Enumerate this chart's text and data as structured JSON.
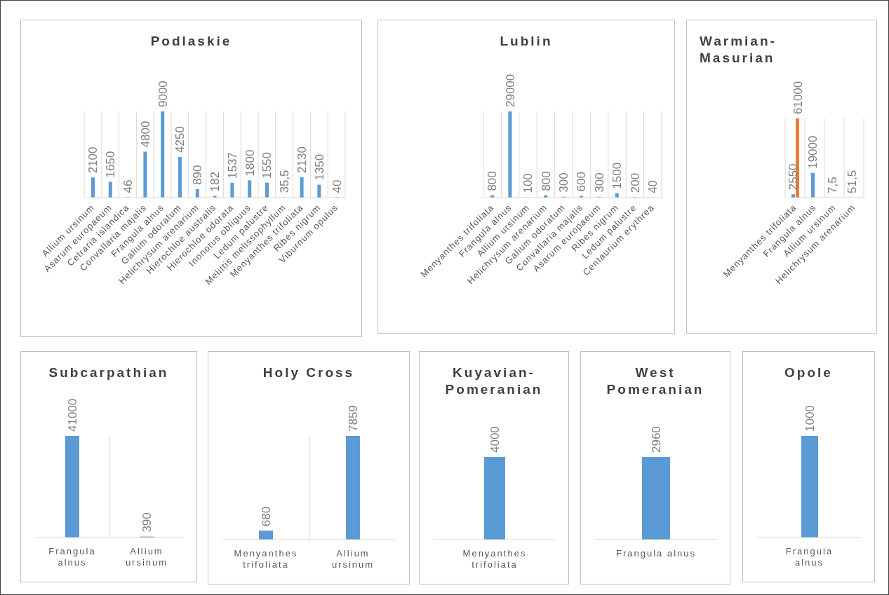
{
  "chart_data": [
    {
      "type": "bar",
      "title": "Podlaskie",
      "categories": [
        "Allium ursinum",
        "Asarum europaeum",
        "Cetraria islandica",
        "Convallaria majalis",
        "Frangula alnus",
        "Galium odoratum",
        "Helichrysum arenarium",
        "Hierochloe australis",
        "Hierochloe odorata",
        "Inonotus obliguus",
        "Ledum palustre",
        "Melittis melissophyllum",
        "Menyanthes trifoliata",
        "Ribes nigrum",
        "Viburnum opulus"
      ],
      "color": "#5b9bd5",
      "values": [
        2100,
        1650,
        46,
        4800,
        9000,
        4250,
        890,
        182,
        1537,
        1800,
        1550,
        35.5,
        2130,
        1350,
        40
      ],
      "value_labels": [
        "2100",
        "1650",
        "46",
        "4800",
        "9000",
        "4250",
        "890",
        "182",
        "1537",
        "1800",
        "1550",
        "35,5",
        "2130",
        "1350",
        "40"
      ],
      "grid": "x"
    },
    {
      "type": "bar",
      "title": "Lublin",
      "categories": [
        "Menyanthes trifoliata",
        "Frangula alnus",
        "Allium ursinum",
        "Helichrysum arenarium",
        "Galium odoratum",
        "Convallaria majalis",
        "Asarum europaeum",
        "Ribes nigrum",
        "Ledum palustre",
        "Centaurium erythrea"
      ],
      "color": "#5b9bd5",
      "values": [
        800,
        29000,
        100,
        800,
        300,
        600,
        300,
        1500,
        200,
        40
      ],
      "data_labels": true,
      "grid": "x"
    },
    {
      "type": "bar",
      "title": "Warmian-Masurian",
      "categories": [
        "Menyanthes trifoliata",
        "Frangula alnus",
        "Allium ursinum",
        "Helichrysum arenarium"
      ],
      "series": [
        {
          "color": "#5b9bd5",
          "values": [
            2550,
            19000,
            7.5,
            51.5
          ],
          "value_labels": [
            "2550",
            "19000",
            "7,5",
            "51,5"
          ]
        },
        {
          "color": "#ed7d31",
          "values": [
            61000,
            null,
            null,
            null
          ],
          "value_labels": [
            "61000",
            null,
            null,
            null
          ]
        }
      ],
      "grid": "x"
    },
    {
      "type": "bar",
      "title": "Subcarpathian",
      "categories": [
        "Frangula alnus",
        "Allium ursinum"
      ],
      "color": "#5b9bd5",
      "values": [
        41000,
        390
      ],
      "data_labels": true,
      "grid": "x"
    },
    {
      "type": "bar",
      "title": "Holy Cross",
      "categories": [
        "Menyanthes trifoliata",
        "Allium ursinum"
      ],
      "color": "#5b9bd5",
      "values": [
        680,
        7859
      ],
      "data_labels": true,
      "grid": "x"
    },
    {
      "type": "bar",
      "title": "Kuyavian-Pomeranian",
      "categories": [
        "Menyanthes trifoliata"
      ],
      "color": "#5b9bd5",
      "values": [
        4000
      ],
      "data_labels": true
    },
    {
      "type": "bar",
      "title": "West Pomeranian",
      "categories": [
        "Frangula alnus"
      ],
      "color": "#5b9bd5",
      "values": [
        2960
      ],
      "data_labels": true
    },
    {
      "type": "bar",
      "title": "Opole",
      "categories": [
        "Frangula alnus"
      ],
      "color": "#5b9bd5",
      "values": [
        1000
      ],
      "data_labels": true
    }
  ]
}
